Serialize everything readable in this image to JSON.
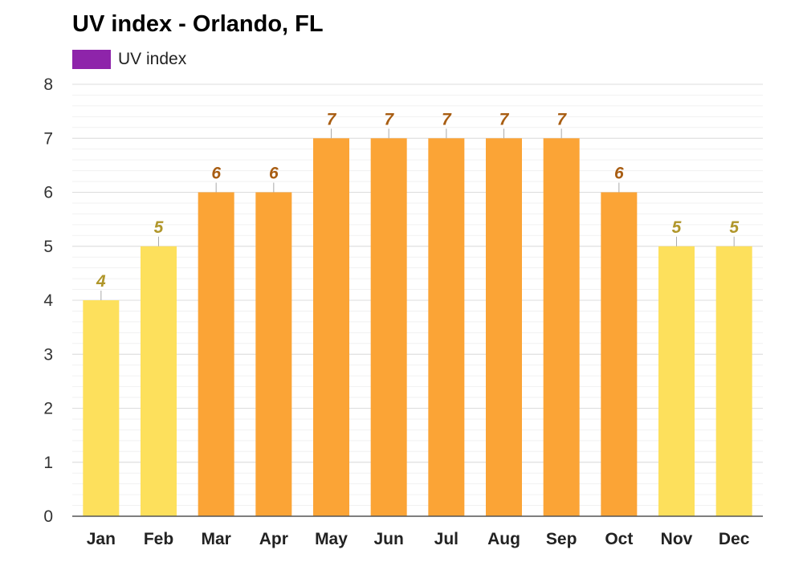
{
  "chart_data": {
    "type": "bar",
    "title": "UV index - Orlando, FL",
    "legend": {
      "label": "UV index",
      "color": "#8e24aa",
      "placement": "top-left"
    },
    "categories": [
      "Jan",
      "Feb",
      "Mar",
      "Apr",
      "May",
      "Jun",
      "Jul",
      "Aug",
      "Sep",
      "Oct",
      "Nov",
      "Dec"
    ],
    "series": [
      {
        "name": "UV index",
        "values": [
          4,
          5,
          6,
          6,
          7,
          7,
          7,
          7,
          7,
          6,
          5,
          5
        ]
      }
    ],
    "ylim": [
      0,
      8
    ],
    "yticks": [
      0,
      1,
      2,
      3,
      4,
      5,
      6,
      7,
      8
    ],
    "grid": true,
    "colors": {
      "moderate_bar": "#fde05c",
      "high_bar": "#fba436",
      "moderate_label": "#b0962a",
      "high_label": "#a85d12"
    }
  }
}
